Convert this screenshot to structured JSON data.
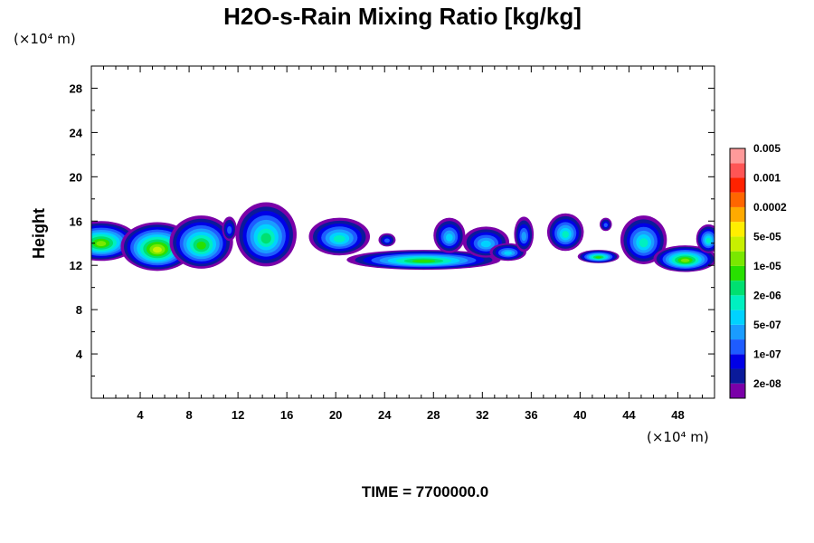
{
  "chart_data": {
    "type": "heatmap",
    "title": "H2O-s-Rain Mixing Ratio [kg/kg]",
    "ylabel": "Height",
    "x_unit": "(×10⁴ m)",
    "y_unit": "(×10⁴ m)",
    "xlim": [
      0,
      51
    ],
    "ylim": [
      0,
      30
    ],
    "x_ticks": [
      4,
      8,
      12,
      16,
      20,
      24,
      28,
      32,
      36,
      40,
      44,
      48
    ],
    "y_ticks": [
      4,
      8,
      12,
      16,
      20,
      24,
      28
    ],
    "footer": "TIME = 7700000.0",
    "colorbar": {
      "colors": [
        "#7a00a8",
        "#0a1a9a",
        "#0000e6",
        "#1e5cff",
        "#1a9cff",
        "#00d2ff",
        "#00f0c0",
        "#00e070",
        "#28e000",
        "#7ae800",
        "#c8f000",
        "#ffee00",
        "#ffaa00",
        "#ff6600",
        "#ff2200",
        "#ff5555",
        "#ff9a9a"
      ],
      "labels": [
        "2e-08",
        "1e-07",
        "5e-07",
        "2e-06",
        "1e-05",
        "5e-05",
        "0.0002",
        "0.001",
        "0.005"
      ]
    },
    "cells": [
      {
        "x": 0.8,
        "y": 14.2,
        "rx": 3.0,
        "ry": 1.8,
        "level": 9
      },
      {
        "x": 5.4,
        "y": 13.7,
        "rx": 3.0,
        "ry": 2.2,
        "level": 10
      },
      {
        "x": 9.0,
        "y": 14.1,
        "rx": 2.6,
        "ry": 2.4,
        "level": 8
      },
      {
        "x": 14.3,
        "y": 14.8,
        "rx": 2.5,
        "ry": 2.9,
        "level": 7
      },
      {
        "x": 11.3,
        "y": 15.3,
        "rx": 0.6,
        "ry": 1.1,
        "level": 3
      },
      {
        "x": 20.3,
        "y": 14.6,
        "rx": 2.5,
        "ry": 1.7,
        "level": 6
      },
      {
        "x": 24.2,
        "y": 14.3,
        "rx": 0.7,
        "ry": 0.6,
        "level": 3
      },
      {
        "x": 27.2,
        "y": 12.5,
        "rx": 6.3,
        "ry": 0.9,
        "level": 8
      },
      {
        "x": 29.3,
        "y": 14.7,
        "rx": 1.3,
        "ry": 1.6,
        "level": 5
      },
      {
        "x": 32.3,
        "y": 14.1,
        "rx": 1.9,
        "ry": 1.4,
        "level": 5
      },
      {
        "x": 34.1,
        "y": 13.2,
        "rx": 1.5,
        "ry": 0.8,
        "level": 5
      },
      {
        "x": 35.4,
        "y": 14.8,
        "rx": 0.8,
        "ry": 1.6,
        "level": 4
      },
      {
        "x": 38.8,
        "y": 15.0,
        "rx": 1.5,
        "ry": 1.7,
        "level": 6
      },
      {
        "x": 41.5,
        "y": 12.8,
        "rx": 1.7,
        "ry": 0.6,
        "level": 8
      },
      {
        "x": 42.1,
        "y": 15.7,
        "rx": 0.5,
        "ry": 0.6,
        "level": 3
      },
      {
        "x": 45.2,
        "y": 14.3,
        "rx": 1.9,
        "ry": 2.2,
        "level": 6
      },
      {
        "x": 48.6,
        "y": 12.6,
        "rx": 2.6,
        "ry": 1.2,
        "level": 9
      },
      {
        "x": 50.5,
        "y": 14.4,
        "rx": 1.0,
        "ry": 1.3,
        "level": 6
      }
    ]
  }
}
